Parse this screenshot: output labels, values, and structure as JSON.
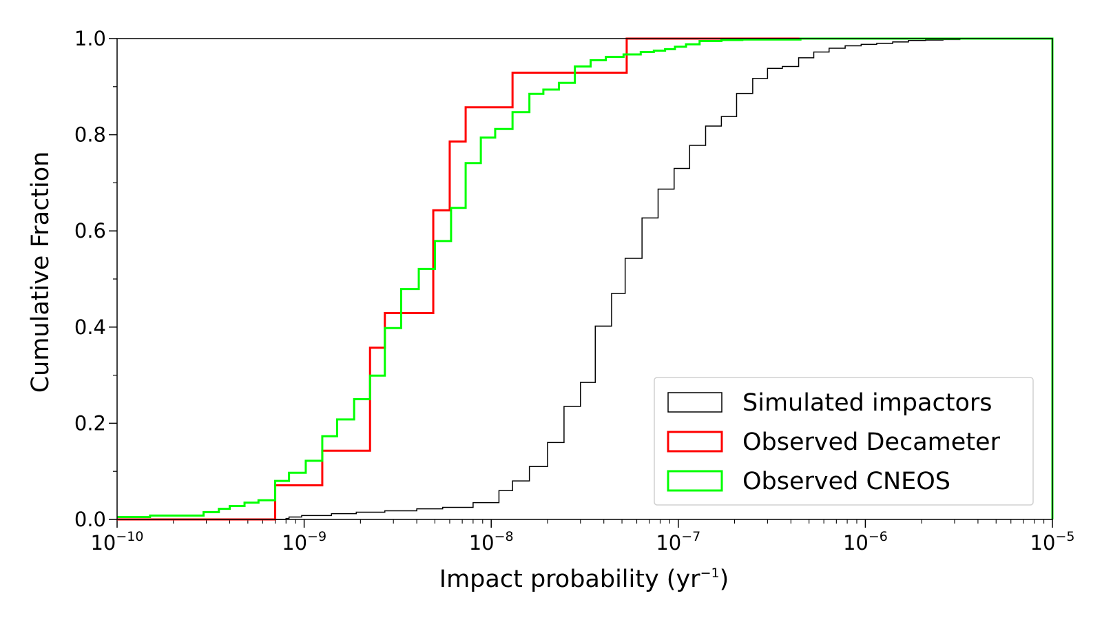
{
  "chart_data": {
    "type": "line",
    "step": true,
    "xlabel": "Impact probability (yr",
    "xlabel_sup": "−1",
    "xlabel_suffix": ")",
    "ylabel": "Cumulative Fraction",
    "xscale": "log",
    "xlim": [
      1e-10,
      1e-05
    ],
    "ylim": [
      0,
      1
    ],
    "x_ticks": [
      {
        "base": "10",
        "exp": "−10"
      },
      {
        "base": "10",
        "exp": "−9"
      },
      {
        "base": "10",
        "exp": "−8"
      },
      {
        "base": "10",
        "exp": "−7"
      },
      {
        "base": "10",
        "exp": "−6"
      },
      {
        "base": "10",
        "exp": "−5"
      }
    ],
    "y_ticks": [
      "0.0",
      "0.2",
      "0.4",
      "0.6",
      "0.8",
      "1.0"
    ],
    "legend_position": "lower-right",
    "series": [
      {
        "name": "Simulated impactors",
        "color": "#000000",
        "x": [
          1e-10,
          8e-10,
          8.3e-10,
          9.7e-10,
          1.4e-09,
          1.9e-09,
          2.7e-09,
          4e-09,
          5.5e-09,
          8e-09,
          1.1e-08,
          1.3e-08,
          1.6e-08,
          2e-08,
          2.45e-08,
          3e-08,
          3.6e-08,
          4.4e-08,
          5.2e-08,
          6.4e-08,
          7.8e-08,
          9.5e-08,
          1.15e-07,
          1.4e-07,
          1.7e-07,
          2.05e-07,
          2.5e-07,
          3e-07,
          3.6e-07,
          4.4e-07,
          5.3e-07,
          6.4e-07,
          7.8e-07,
          9.5e-07,
          1.15e-06,
          1.4e-06,
          1.7e-06,
          2.1e-06,
          2.6e-06,
          3.2e-06,
          3.9e-06,
          1e-05
        ],
        "y": [
          0,
          0.002,
          0.005,
          0.008,
          0.012,
          0.015,
          0.018,
          0.022,
          0.025,
          0.035,
          0.06,
          0.08,
          0.11,
          0.16,
          0.235,
          0.285,
          0.402,
          0.47,
          0.543,
          0.627,
          0.687,
          0.73,
          0.778,
          0.818,
          0.838,
          0.886,
          0.917,
          0.938,
          0.942,
          0.96,
          0.972,
          0.98,
          0.985,
          0.988,
          0.99,
          0.993,
          0.996,
          0.997,
          0.998,
          0.999,
          1.0,
          1.0
        ]
      },
      {
        "name": "Observed Decameter",
        "color": "#ff0000",
        "x": [
          1e-10,
          7e-10,
          1.25e-09,
          2.25e-09,
          2.7e-09,
          4.9e-09,
          6e-09,
          7.3e-09,
          1.3e-08,
          5.3e-08,
          1e-05
        ],
        "y": [
          0,
          0.071,
          0.143,
          0.357,
          0.429,
          0.643,
          0.786,
          0.857,
          0.929,
          1.0,
          1.0
        ]
      },
      {
        "name": "Observed CNEOS",
        "color": "#00ff00",
        "x": [
          1e-10,
          1.5e-10,
          2.9e-10,
          3.5e-10,
          4e-10,
          4.8e-10,
          5.7e-10,
          7e-10,
          8.3e-10,
          1.02e-09,
          1.25e-09,
          1.5e-09,
          1.85e-09,
          2.25e-09,
          2.7e-09,
          3.3e-09,
          4.1e-09,
          5e-09,
          6.1e-09,
          7.3e-09,
          8.8e-09,
          1.05e-08,
          1.3e-08,
          1.6e-08,
          1.9e-08,
          2.3e-08,
          2.8e-08,
          3.4e-08,
          4.1e-08,
          5.1e-08,
          6.3e-08,
          7.4e-08,
          8.5e-08,
          9.6e-08,
          1.1e-07,
          1.3e-07,
          1.7e-07,
          2.2e-07,
          4.5e-07,
          1e-05
        ],
        "y": [
          0.005,
          0.008,
          0.015,
          0.022,
          0.028,
          0.035,
          0.04,
          0.08,
          0.097,
          0.122,
          0.173,
          0.208,
          0.25,
          0.299,
          0.398,
          0.479,
          0.521,
          0.579,
          0.648,
          0.741,
          0.794,
          0.812,
          0.847,
          0.885,
          0.894,
          0.908,
          0.942,
          0.955,
          0.962,
          0.967,
          0.972,
          0.975,
          0.978,
          0.983,
          0.988,
          0.995,
          0.997,
          0.998,
          1.0,
          1.0
        ]
      }
    ]
  }
}
